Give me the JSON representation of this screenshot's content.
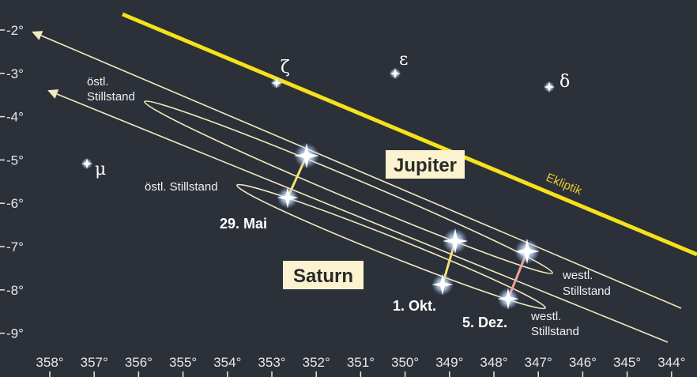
{
  "axes": {
    "y_labels": [
      "-2°",
      "-3°",
      "-4°",
      "-5°",
      "-6°",
      "-7°",
      "-8°",
      "-9°"
    ],
    "x_labels": [
      "358°",
      "357°",
      "356°",
      "355°",
      "354°",
      "353°",
      "352°",
      "351°",
      "350°",
      "349°",
      "348°",
      "347°",
      "346°",
      "345°",
      "344°"
    ]
  },
  "stars": [
    "ζ",
    "ε",
    "δ",
    "μ"
  ],
  "labels": {
    "ecliptic": "Ekliptik",
    "jupiter": "Jupiter",
    "saturn": "Saturn",
    "dates": [
      "29. Mai",
      "1. Okt.",
      "5. Dez."
    ],
    "stations": [
      [
        "östl.",
        "Stillstand"
      ],
      [
        "östl. Stillstand"
      ],
      [
        "westl.",
        "Stillstand"
      ],
      [
        "westl.",
        "Stillstand"
      ]
    ]
  }
}
